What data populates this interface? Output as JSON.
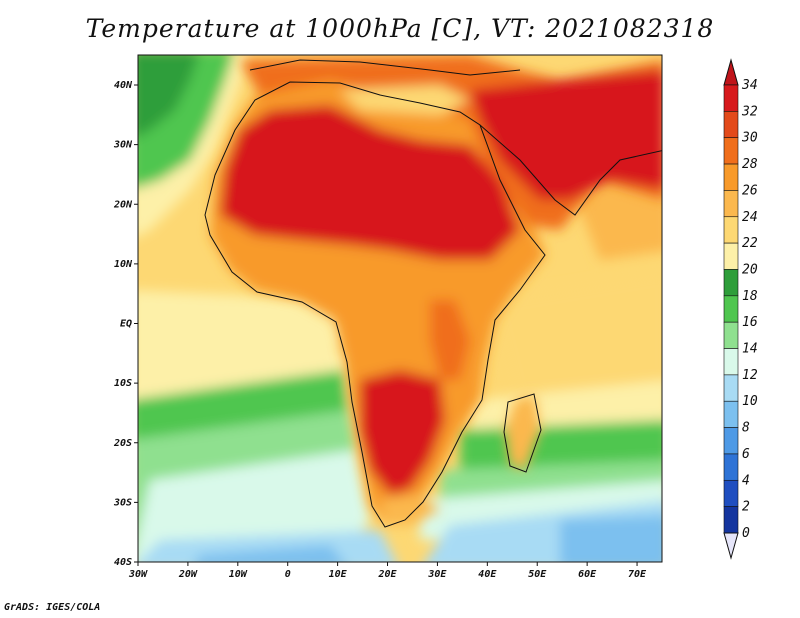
{
  "title": "Temperature at 1000hPa [C], VT: 2021082318",
  "credit": "GrADS: IGES/COLA",
  "map": {
    "lon_range": [
      -30,
      75
    ],
    "lat_range": [
      -40,
      45
    ],
    "lon_ticks": [
      "30W",
      "20W",
      "10W",
      "0",
      "10E",
      "20E",
      "30E",
      "40E",
      "50E",
      "60E",
      "70E"
    ],
    "lat_ticks": [
      "40N",
      "30N",
      "20N",
      "10N",
      "EQ",
      "10S",
      "20S",
      "30S",
      "40S"
    ]
  },
  "colorbar": {
    "labels": [
      "34",
      "32",
      "30",
      "28",
      "26",
      "24",
      "22",
      "20",
      "18",
      "16",
      "14",
      "12",
      "10",
      "8",
      "6",
      "4",
      "2",
      "0"
    ],
    "colors": [
      "#d7191c",
      "#e34a1a",
      "#f06e1b",
      "#f89a2a",
      "#fbb84e",
      "#fdd873",
      "#fdf0a8",
      "#2e9e3a",
      "#4fc64f",
      "#8fe08f",
      "#d9f9ea",
      "#a8dbf4",
      "#7cc0ef",
      "#4e9ae6",
      "#2e73d6",
      "#1f4ec0",
      "#14359f",
      "#0a1f6e"
    ],
    "over_color": "#c0141a",
    "under_color": "#e6e6fa"
  }
}
